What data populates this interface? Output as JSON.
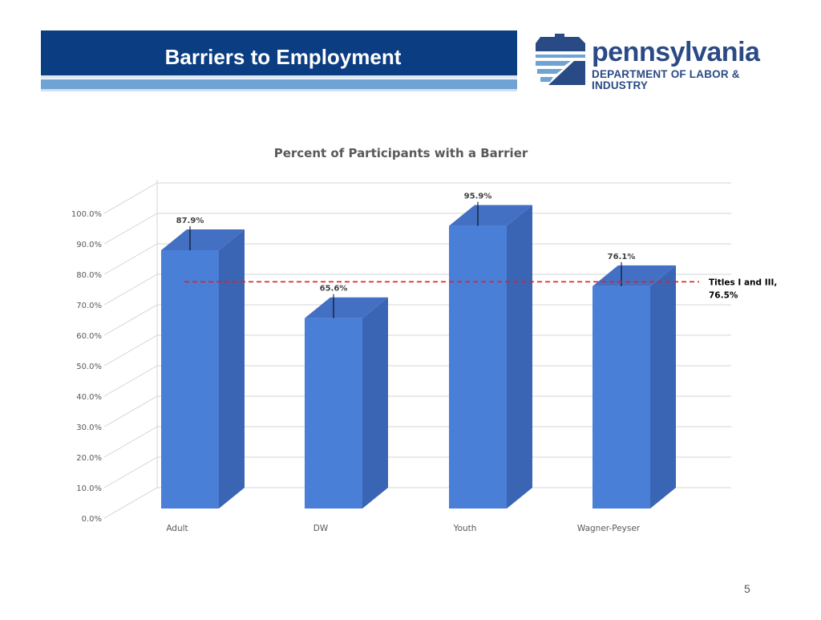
{
  "header": {
    "title": "Barriers to Employment"
  },
  "logo": {
    "name": "pennsylvania",
    "department": "DEPARTMENT OF LABOR & INDUSTRY"
  },
  "chart_data": {
    "type": "bar",
    "title": "Percent of Participants with a Barrier",
    "categories": [
      "Adult",
      "DW",
      "Youth",
      "Wagner-Peyser"
    ],
    "values": [
      87.9,
      65.6,
      95.9,
      76.1
    ],
    "data_labels": [
      "87.9%",
      "65.6%",
      "95.9%",
      "76.1%"
    ],
    "ylim": [
      0,
      100
    ],
    "yticks": [
      "0.0%",
      "10.0%",
      "20.0%",
      "30.0%",
      "40.0%",
      "50.0%",
      "60.0%",
      "70.0%",
      "80.0%",
      "90.0%",
      "100.0%"
    ],
    "grid": true,
    "style_3d": true,
    "bar_color": "#4a7fd8",
    "reference_line": {
      "value": 76.5,
      "label_line1": "Titles I and III,",
      "label_line2": "76.5%",
      "color": "#e02020",
      "style": "dashed"
    }
  },
  "footer": {
    "page_number": "5"
  }
}
